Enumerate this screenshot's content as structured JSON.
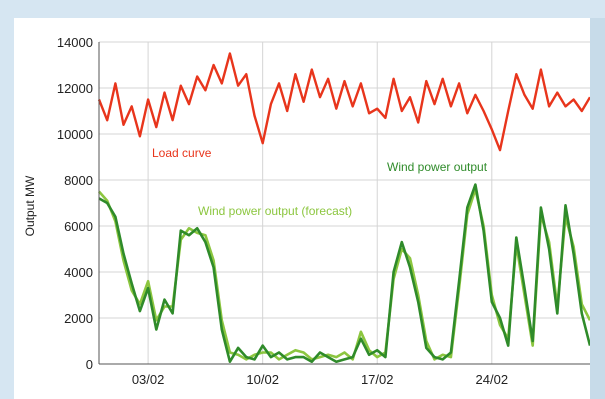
{
  "chart_data": {
    "type": "line",
    "ylabel": "Output MW",
    "ylim": [
      0,
      14000
    ],
    "yticks": [
      0,
      2000,
      4000,
      6000,
      8000,
      10000,
      12000,
      14000
    ],
    "xlim": [
      0,
      30
    ],
    "xticks": [
      {
        "label": "03/02",
        "x": 3
      },
      {
        "label": "10/02",
        "x": 10
      },
      {
        "label": "17/02",
        "x": 17
      },
      {
        "label": "24/02",
        "x": 24
      }
    ],
    "grid": true,
    "annotations": [
      {
        "series": "load",
        "text": "Load curve",
        "color": "#e8351c"
      },
      {
        "series": "wind",
        "text": "Wind power output",
        "color": "#2f8b2a"
      },
      {
        "series": "forecast",
        "text": "Wind power output (forecast)",
        "color": "#8cc63f"
      }
    ],
    "series": [
      {
        "key": "load",
        "color": "#e8351c",
        "x": [
          0,
          0.5,
          1,
          1.5,
          2,
          2.5,
          3,
          3.5,
          4,
          4.5,
          5,
          5.5,
          6,
          6.5,
          7,
          7.5,
          8,
          8.5,
          9,
          9.5,
          10,
          10.5,
          11,
          11.5,
          12,
          12.5,
          13,
          13.5,
          14,
          14.5,
          15,
          15.5,
          16,
          16.5,
          17,
          17.5,
          18,
          18.5,
          19,
          19.5,
          20,
          20.5,
          21,
          21.5,
          22,
          22.5,
          23,
          23.5,
          24,
          24.5,
          25,
          25.5,
          26,
          26.5,
          27,
          27.5,
          28,
          28.5,
          29,
          29.5,
          30
        ],
        "y": [
          11500,
          10600,
          12200,
          10400,
          11200,
          9900,
          11500,
          10300,
          11800,
          10600,
          12100,
          11300,
          12500,
          11900,
          13000,
          12200,
          13500,
          12100,
          12600,
          10800,
          9600,
          11300,
          12200,
          11000,
          12600,
          11400,
          12800,
          11600,
          12400,
          11100,
          12300,
          11200,
          12200,
          10900,
          11100,
          10700,
          12400,
          11000,
          11600,
          10500,
          12300,
          11300,
          12400,
          11200,
          12200,
          10900,
          11700,
          11000,
          10200,
          9300,
          11000,
          12600,
          11700,
          11100,
          12800,
          11200,
          11800,
          11200,
          11500,
          11000,
          11600
        ]
      },
      {
        "key": "wind",
        "color": "#2f8b2a",
        "x": [
          0,
          0.5,
          1,
          1.5,
          2,
          2.5,
          3,
          3.5,
          4,
          4.5,
          5,
          5.5,
          6,
          6.5,
          7,
          7.5,
          8,
          8.5,
          9,
          9.5,
          10,
          10.5,
          11,
          11.5,
          12,
          12.5,
          13,
          13.5,
          14,
          14.5,
          15,
          15.5,
          16,
          16.5,
          17,
          17.5,
          18,
          18.5,
          19,
          19.5,
          20,
          20.5,
          21,
          21.5,
          22,
          22.5,
          23,
          23.5,
          24,
          24.5,
          25,
          25.5,
          26,
          26.5,
          27,
          27.5,
          28,
          28.5,
          29,
          29.5,
          30
        ],
        "y": [
          7200,
          7000,
          6400,
          4800,
          3500,
          2300,
          3300,
          1500,
          2800,
          2200,
          5800,
          5600,
          5900,
          5300,
          4200,
          1500,
          100,
          700,
          300,
          200,
          800,
          300,
          500,
          200,
          300,
          300,
          100,
          500,
          300,
          100,
          200,
          300,
          1100,
          400,
          600,
          300,
          4000,
          5300,
          4200,
          2700,
          700,
          300,
          200,
          500,
          3600,
          6800,
          7800,
          5800,
          2700,
          2000,
          800,
          5500,
          3300,
          1000,
          6800,
          5000,
          2200,
          6900,
          4800,
          2200,
          800
        ]
      },
      {
        "key": "forecast",
        "color": "#8cc63f",
        "x": [
          0,
          0.5,
          1,
          1.5,
          2,
          2.5,
          3,
          3.5,
          4,
          4.5,
          5,
          5.5,
          6,
          6.5,
          7,
          7.5,
          8,
          8.5,
          9,
          9.5,
          10,
          10.5,
          11,
          11.5,
          12,
          12.5,
          13,
          13.5,
          14,
          14.5,
          15,
          15.5,
          16,
          16.5,
          17,
          17.5,
          18,
          18.5,
          19,
          19.5,
          20,
          20.5,
          21,
          21.5,
          22,
          22.5,
          23,
          23.5,
          24,
          24.5,
          25,
          25.5,
          26,
          26.5,
          27,
          27.5,
          28,
          28.5,
          29,
          29.5,
          30
        ],
        "y": [
          7500,
          7100,
          6200,
          4500,
          3200,
          2600,
          3600,
          1900,
          2500,
          2500,
          5400,
          5900,
          5700,
          5600,
          4500,
          1900,
          500,
          400,
          200,
          400,
          500,
          500,
          200,
          400,
          600,
          500,
          200,
          300,
          400,
          300,
          500,
          200,
          1400,
          600,
          300,
          500,
          3700,
          5000,
          4600,
          3000,
          1000,
          200,
          400,
          300,
          3300,
          6500,
          7600,
          6000,
          3000,
          1700,
          1100,
          5200,
          3000,
          800,
          6500,
          5300,
          2500,
          6400,
          5100,
          2600,
          1900
        ]
      }
    ]
  }
}
